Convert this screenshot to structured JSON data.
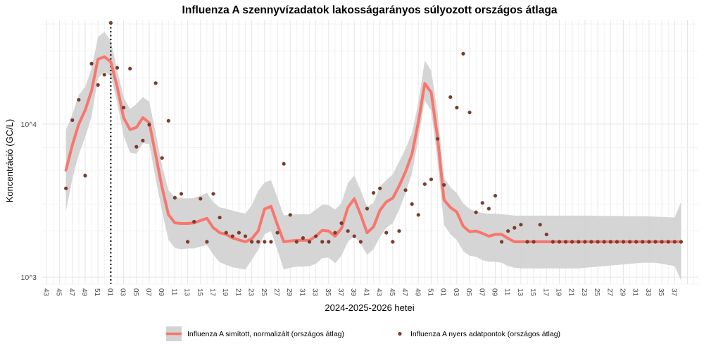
{
  "chart_data": {
    "type": "line",
    "title": "Influenza A szennyvízadatok lakosságarányos súlyozott országos átlaga",
    "xlabel": "2024-2025-2026 hetei",
    "ylabel": "Koncentráció (GC/L)",
    "y_scale": "log",
    "ylim": [
      900,
      48000
    ],
    "y_ticks": [
      {
        "value": 1000,
        "label": "10^3"
      },
      {
        "value": 10000,
        "label": "10^4"
      }
    ],
    "x_range": [
      -0.7,
      101.7
    ],
    "x_tick_labels": [
      "43",
      "45",
      "47",
      "49",
      "51",
      "01",
      "03",
      "05",
      "07",
      "09",
      "11",
      "13",
      "15",
      "17",
      "19",
      "21",
      "23",
      "25",
      "27",
      "29",
      "31",
      "33",
      "35",
      "37",
      "39",
      "41",
      "43",
      "45",
      "47",
      "49",
      "51",
      "01",
      "03",
      "05",
      "07",
      "09",
      "11",
      "13",
      "15",
      "17",
      "19",
      "21",
      "23",
      "25",
      "27",
      "29",
      "31",
      "33",
      "35",
      "37"
    ],
    "vline": {
      "x": 10,
      "style": "dotted"
    },
    "grid": true,
    "legend_position": "bottom",
    "colors": {
      "smooth": "#F8766D",
      "raw": "#7B3B2C",
      "band": "#D3D3D3"
    },
    "series": [
      {
        "name": "Influenza A simított, normalizált (országos átlag)",
        "kind": "line_with_band",
        "x": [
          3,
          4,
          5,
          6,
          7,
          8,
          9,
          10,
          11,
          12,
          13,
          14,
          15,
          16,
          17,
          18,
          19,
          20,
          21,
          22,
          23,
          24,
          25,
          26,
          27,
          28,
          29,
          30,
          31,
          32,
          33,
          34,
          35,
          36,
          37,
          38,
          39,
          40,
          41,
          42,
          43,
          44,
          45,
          46,
          47,
          48,
          49,
          50,
          51,
          52,
          53,
          54,
          55,
          56,
          57,
          58,
          59,
          60,
          61,
          62,
          63,
          64,
          65,
          66,
          67,
          68,
          69,
          70,
          71,
          72,
          73,
          74,
          75,
          76,
          77,
          78,
          79,
          80,
          81,
          82,
          83,
          84,
          85,
          86,
          87,
          88,
          89,
          90,
          91,
          92,
          93,
          94,
          95,
          96,
          97,
          98,
          99
        ],
        "values": [
          5000,
          7300,
          10000,
          12300,
          16500,
          26500,
          27500,
          25500,
          17500,
          11000,
          9200,
          9500,
          11000,
          10200,
          6300,
          3850,
          2560,
          2260,
          2240,
          2240,
          2260,
          2340,
          2420,
          2100,
          1950,
          1900,
          1800,
          1750,
          1700,
          1780,
          2000,
          2780,
          2900,
          2200,
          1700,
          1720,
          1740,
          1740,
          1740,
          1850,
          2020,
          2000,
          1850,
          2080,
          2850,
          3250,
          2550,
          1950,
          2130,
          2730,
          3100,
          3280,
          3940,
          4880,
          6360,
          10300,
          18400,
          16100,
          8150,
          3200,
          2850,
          2660,
          2150,
          1980,
          2000,
          1930,
          1850,
          1900,
          1900,
          1790,
          1700,
          1700,
          1700,
          1700,
          1700,
          1700,
          1700,
          1700,
          1700,
          1700,
          1700,
          1700,
          1700,
          1700,
          1700,
          1700,
          1700,
          1700,
          1700,
          1700,
          1700,
          1700,
          1700,
          1700,
          1700,
          1700,
          1700
        ],
        "band_lower": [
          2700,
          4400,
          6300,
          8200,
          11200,
          20000,
          22000,
          20500,
          13800,
          8400,
          6500,
          6400,
          7500,
          7400,
          4400,
          2700,
          1750,
          1550,
          1520,
          1540,
          1540,
          1580,
          1620,
          1400,
          1250,
          1200,
          1160,
          1140,
          1120,
          1300,
          1500,
          1900,
          2000,
          1500,
          1120,
          1150,
          1170,
          1170,
          1180,
          1220,
          1330,
          1340,
          1230,
          1380,
          1700,
          1850,
          1650,
          1400,
          1520,
          1830,
          2100,
          2250,
          2750,
          3550,
          4750,
          8000,
          14300,
          12200,
          5700,
          2200,
          1900,
          1750,
          1480,
          1380,
          1360,
          1290,
          1260,
          1260,
          1240,
          1180,
          1150,
          1140,
          1140,
          1140,
          1140,
          1140,
          1140,
          1140,
          1140,
          1140,
          1140,
          1150,
          1160,
          1170,
          1180,
          1190,
          1200,
          1210,
          1220,
          1230,
          1240,
          1240,
          1240,
          1220,
          1200,
          1180,
          950
        ],
        "band_upper": [
          9200,
          11500,
          15500,
          17500,
          23000,
          37000,
          40000,
          35000,
          22500,
          15000,
          12500,
          13500,
          15000,
          14000,
          8800,
          5300,
          3700,
          3330,
          3280,
          3260,
          3290,
          3400,
          3550,
          3080,
          2850,
          2800,
          2720,
          2650,
          2600,
          2950,
          3650,
          4150,
          4300,
          3300,
          2530,
          2560,
          2570,
          2570,
          2570,
          2760,
          2970,
          2950,
          2760,
          3050,
          4120,
          4600,
          3680,
          2880,
          3050,
          3900,
          4300,
          4680,
          5670,
          6900,
          8700,
          13800,
          26000,
          22300,
          11900,
          4450,
          3870,
          3540,
          3030,
          2790,
          2680,
          2620,
          2600,
          2600,
          2570,
          2550,
          2520,
          2520,
          2520,
          2520,
          2520,
          2520,
          2520,
          2520,
          2520,
          2520,
          2520,
          2520,
          2520,
          2510,
          2510,
          2510,
          2510,
          2500,
          2500,
          2500,
          2500,
          2490,
          2480,
          2470,
          2460,
          2450,
          3100
        ]
      },
      {
        "name": "Influenza A nyers adatpontok (országos átlag)",
        "kind": "points",
        "x": [
          3,
          4,
          5,
          6,
          7,
          8,
          9,
          10,
          11,
          12,
          13,
          14,
          15,
          16,
          17,
          18,
          19,
          20,
          21,
          22,
          23,
          24,
          25,
          26,
          27,
          28,
          29,
          30,
          31,
          32,
          33,
          34,
          35,
          36,
          37,
          38,
          39,
          40,
          41,
          42,
          43,
          44,
          45,
          46,
          47,
          48,
          49,
          50,
          51,
          52,
          53,
          54,
          55,
          56,
          57,
          58,
          59,
          60,
          61,
          62,
          63,
          64,
          65,
          66,
          67,
          68,
          69,
          70,
          71,
          72,
          73,
          74,
          75,
          76,
          77,
          78,
          79,
          80,
          81,
          82,
          83,
          84,
          85,
          86,
          87,
          88,
          89,
          90,
          91,
          92,
          93,
          94,
          95,
          96,
          97,
          98,
          99
        ],
        "values": [
          3800,
          10600,
          14400,
          4600,
          24800,
          18000,
          21000,
          45800,
          23300,
          12800,
          23000,
          7100,
          7800,
          9900,
          18500,
          6000,
          10500,
          3300,
          3500,
          1700,
          2300,
          3250,
          1700,
          3500,
          2450,
          1950,
          1850,
          1950,
          1850,
          1700,
          1700,
          1700,
          1700,
          1950,
          5500,
          2550,
          1700,
          1800,
          1700,
          1850,
          1700,
          1700,
          1950,
          2250,
          2000,
          1850,
          1700,
          2800,
          3550,
          3800,
          1950,
          1700,
          2000,
          3700,
          3000,
          2550,
          4050,
          4350,
          8000,
          4000,
          15000,
          12800,
          28800,
          11900,
          2650,
          3050,
          2800,
          3400,
          1700,
          2000,
          2100,
          2200,
          1700,
          1700,
          2200,
          1900,
          1700,
          1700,
          1700,
          1700,
          1700,
          1700,
          1700,
          1700,
          1700,
          1700,
          1700,
          1700,
          1700,
          1700,
          1700,
          1700,
          1700,
          1700,
          1700,
          1700,
          1700
        ]
      }
    ]
  }
}
